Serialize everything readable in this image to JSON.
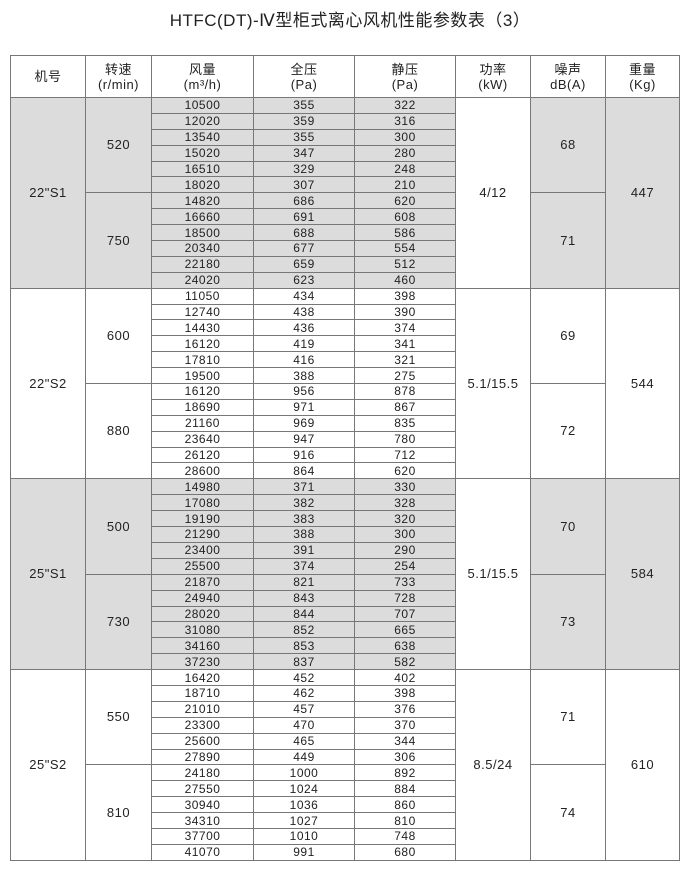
{
  "title": "HTFC(DT)-Ⅳ型柜式离心风机性能参数表（3）",
  "headers": [
    {
      "line1": "机号",
      "line2": ""
    },
    {
      "line1": "转速",
      "line2": "(r/min)"
    },
    {
      "line1": "风量",
      "line2": "(m³/h)"
    },
    {
      "line1": "全压",
      "line2": "(Pa)"
    },
    {
      "line1": "静压",
      "line2": "(Pa)"
    },
    {
      "line1": "功率",
      "line2": "(kW)"
    },
    {
      "line1": "噪声",
      "line2": "dB(A)"
    },
    {
      "line1": "重量",
      "line2": "(Kg)"
    }
  ],
  "colors": {
    "shaded": "#dcdcdc",
    "border": "#777777"
  },
  "models": [
    {
      "model": "22\"S1",
      "power": "4/12",
      "weight": "447",
      "shaded": true,
      "speeds": [
        {
          "rpm": "520",
          "noise": "68",
          "rows": [
            [
              "10500",
              "355",
              "322"
            ],
            [
              "12020",
              "359",
              "316"
            ],
            [
              "13540",
              "355",
              "300"
            ],
            [
              "15020",
              "347",
              "280"
            ],
            [
              "16510",
              "329",
              "248"
            ],
            [
              "18020",
              "307",
              "210"
            ]
          ]
        },
        {
          "rpm": "750",
          "noise": "71",
          "rows": [
            [
              "14820",
              "686",
              "620"
            ],
            [
              "16660",
              "691",
              "608"
            ],
            [
              "18500",
              "688",
              "586"
            ],
            [
              "20340",
              "677",
              "554"
            ],
            [
              "22180",
              "659",
              "512"
            ],
            [
              "24020",
              "623",
              "460"
            ]
          ]
        }
      ]
    },
    {
      "model": "22\"S2",
      "power": "5.1/15.5",
      "weight": "544",
      "shaded": false,
      "speeds": [
        {
          "rpm": "600",
          "noise": "69",
          "rows": [
            [
              "11050",
              "434",
              "398"
            ],
            [
              "12740",
              "438",
              "390"
            ],
            [
              "14430",
              "436",
              "374"
            ],
            [
              "16120",
              "419",
              "341"
            ],
            [
              "17810",
              "416",
              "321"
            ],
            [
              "19500",
              "388",
              "275"
            ]
          ]
        },
        {
          "rpm": "880",
          "noise": "72",
          "rows": [
            [
              "16120",
              "956",
              "878"
            ],
            [
              "18690",
              "971",
              "867"
            ],
            [
              "21160",
              "969",
              "835"
            ],
            [
              "23640",
              "947",
              "780"
            ],
            [
              "26120",
              "916",
              "712"
            ],
            [
              "28600",
              "864",
              "620"
            ]
          ]
        }
      ]
    },
    {
      "model": "25\"S1",
      "power": "5.1/15.5",
      "weight": "584",
      "shaded": true,
      "speeds": [
        {
          "rpm": "500",
          "noise": "70",
          "rows": [
            [
              "14980",
              "371",
              "330"
            ],
            [
              "17080",
              "382",
              "328"
            ],
            [
              "19190",
              "383",
              "320"
            ],
            [
              "21290",
              "388",
              "300"
            ],
            [
              "23400",
              "391",
              "290"
            ],
            [
              "25500",
              "374",
              "254"
            ]
          ]
        },
        {
          "rpm": "730",
          "noise": "73",
          "rows": [
            [
              "21870",
              "821",
              "733"
            ],
            [
              "24940",
              "843",
              "728"
            ],
            [
              "28020",
              "844",
              "707"
            ],
            [
              "31080",
              "852",
              "665"
            ],
            [
              "34160",
              "853",
              "638"
            ],
            [
              "37230",
              "837",
              "582"
            ]
          ]
        }
      ]
    },
    {
      "model": "25\"S2",
      "power": "8.5/24",
      "weight": "610",
      "shaded": false,
      "speeds": [
        {
          "rpm": "550",
          "noise": "71",
          "rows": [
            [
              "16420",
              "452",
              "402"
            ],
            [
              "18710",
              "462",
              "398"
            ],
            [
              "21010",
              "457",
              "376"
            ],
            [
              "23300",
              "470",
              "370"
            ],
            [
              "25600",
              "465",
              "344"
            ],
            [
              "27890",
              "449",
              "306"
            ]
          ]
        },
        {
          "rpm": "810",
          "noise": "74",
          "rows": [
            [
              "24180",
              "1000",
              "892"
            ],
            [
              "27550",
              "1024",
              "884"
            ],
            [
              "30940",
              "1036",
              "860"
            ],
            [
              "34310",
              "1027",
              "810"
            ],
            [
              "37700",
              "1010",
              "748"
            ],
            [
              "41070",
              "991",
              "680"
            ]
          ]
        }
      ]
    }
  ]
}
